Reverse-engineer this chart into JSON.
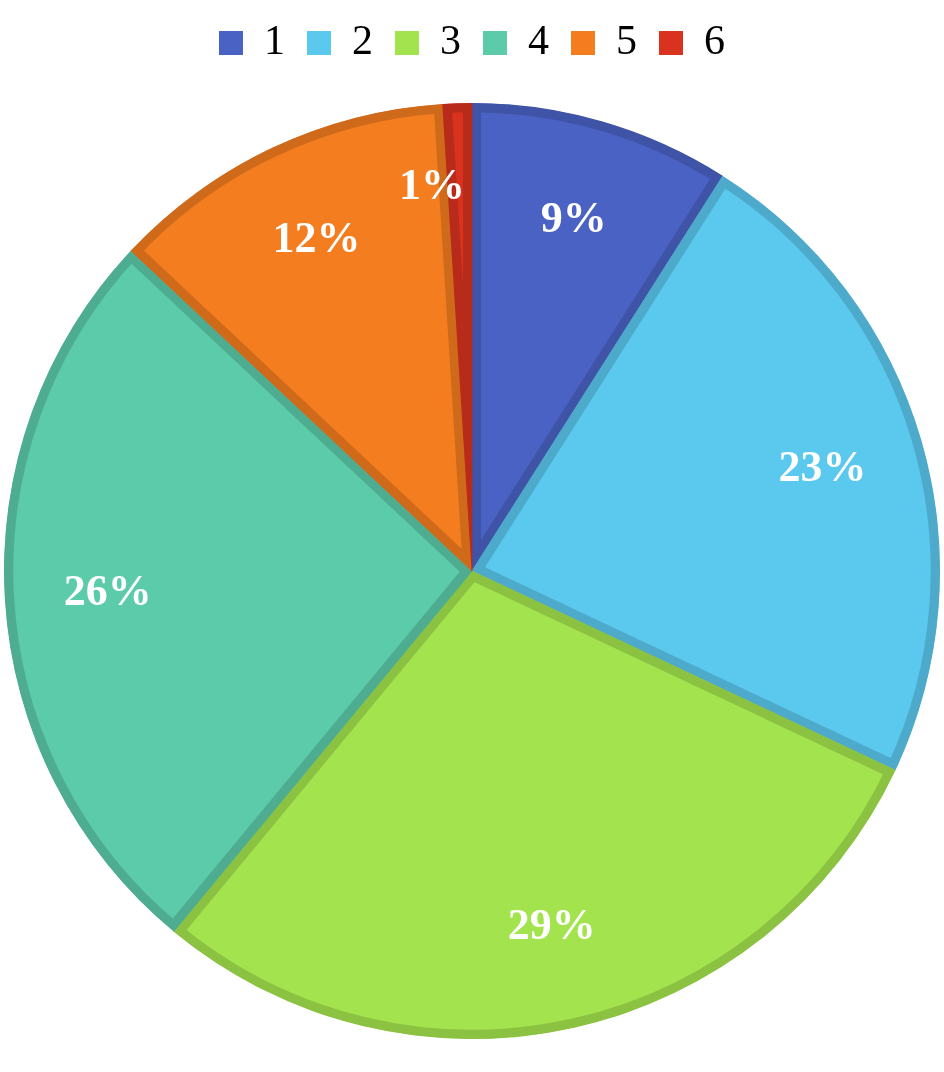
{
  "chart_data": {
    "type": "pie",
    "categories": [
      "1",
      "2",
      "3",
      "4",
      "5",
      "6"
    ],
    "values": [
      9,
      23,
      29,
      26,
      12,
      1
    ],
    "colors": [
      "#4a62c4",
      "#5bc8ee",
      "#a3e44e",
      "#5ccbaa",
      "#f47d20",
      "#d9331f"
    ],
    "value_labels": [
      "9%",
      "23%",
      "29%",
      "26%",
      "12%",
      "1%"
    ],
    "legend": "top"
  }
}
